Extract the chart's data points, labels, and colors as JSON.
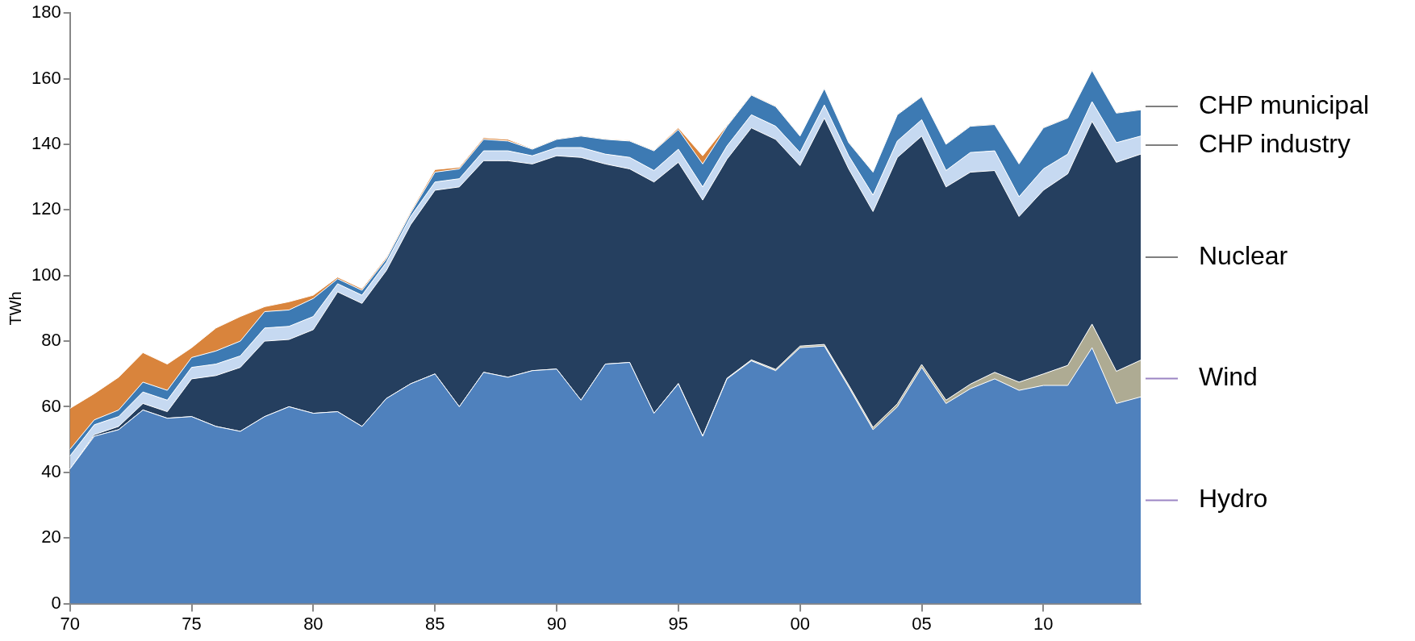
{
  "chart_data": {
    "type": "area",
    "stacked": true,
    "ylabel": "TWh",
    "ylim": [
      0,
      180
    ],
    "yticks": [
      0,
      20,
      40,
      60,
      80,
      100,
      120,
      140,
      160,
      180
    ],
    "grid": false,
    "legend": false,
    "categories": [
      "70",
      null,
      null,
      null,
      null,
      "75",
      null,
      null,
      null,
      null,
      "80",
      null,
      null,
      null,
      null,
      "85",
      null,
      null,
      null,
      null,
      "90",
      null,
      null,
      null,
      null,
      "95",
      null,
      null,
      null,
      null,
      "00",
      null,
      null,
      null,
      null,
      "05",
      null,
      null,
      null,
      null,
      "10",
      null,
      null,
      null,
      null
    ],
    "series": [
      {
        "name": "Hydro",
        "color": "#4f81bd",
        "values": [
          41,
          51,
          53,
          59,
          56.5,
          57,
          54,
          52.5,
          57,
          60,
          58,
          58.5,
          54,
          62.5,
          67,
          70,
          60,
          70.5,
          69,
          71,
          71.5,
          62,
          73,
          73.5,
          58,
          67,
          51,
          68.5,
          74,
          71,
          78,
          78.5,
          66,
          53,
          60,
          72,
          61,
          65.5,
          68.5,
          65,
          66.5,
          66.5,
          78,
          61,
          63
        ]
      },
      {
        "name": "Wind",
        "color": "#aeab93",
        "values": [
          0,
          0,
          0,
          0,
          0,
          0,
          0,
          0,
          0,
          0,
          0,
          0,
          0,
          0,
          0,
          0,
          0,
          0,
          0,
          0,
          0,
          0,
          0,
          0,
          0,
          0.1,
          0.1,
          0.2,
          0.3,
          0.4,
          0.5,
          0.5,
          0.6,
          0.7,
          0.9,
          0.9,
          1,
          1.4,
          2,
          2.5,
          3.5,
          6.1,
          7.2,
          9.8,
          11.2
        ]
      },
      {
        "name": "Nuclear",
        "color": "#253f5f",
        "values": [
          0,
          0.5,
          1,
          2,
          2,
          11.5,
          15.5,
          19.5,
          23,
          20.5,
          25.5,
          36.5,
          37.5,
          39,
          48.5,
          56,
          67,
          64.5,
          66,
          63,
          65,
          74,
          61,
          59,
          70.5,
          67.4,
          71.9,
          66.8,
          70.7,
          70.1,
          55,
          69,
          65.9,
          65.8,
          75.1,
          69.6,
          65,
          64.6,
          61.5,
          50.5,
          56,
          58.4,
          61.8,
          63.7,
          62.8
        ]
      },
      {
        "name": "CHP industry",
        "color": "#c6d9f1",
        "values": [
          4,
          3,
          3,
          3.5,
          3.5,
          3.5,
          3.5,
          3.5,
          4,
          4,
          4,
          2.5,
          2.5,
          2.5,
          2.5,
          2.5,
          2.5,
          3,
          3,
          2.5,
          2.5,
          3,
          3,
          3.5,
          3.5,
          4,
          4,
          4,
          4,
          4,
          4,
          4,
          4,
          5,
          5,
          5,
          5,
          6,
          6,
          6,
          6.5,
          6,
          6,
          6,
          5.5
        ]
      },
      {
        "name": "CHP municipal",
        "color": "#3d7ab3",
        "values": [
          2,
          1.5,
          2,
          3,
          3,
          3,
          4,
          4.5,
          5,
          5,
          5.5,
          1.5,
          1.5,
          1,
          1,
          3,
          3,
          3.5,
          3,
          2,
          2.5,
          3.5,
          4.5,
          5,
          6,
          6,
          7,
          6,
          6,
          6,
          5,
          5,
          4,
          7,
          8,
          7,
          8,
          8,
          8,
          10,
          12.5,
          11,
          9.5,
          9,
          8
        ]
      },
      {
        "color": "#d9843c",
        "values": [
          12.5,
          8,
          10,
          9,
          8,
          3,
          7,
          7.5,
          1.5,
          2.5,
          1,
          0.5,
          0.5,
          0.5,
          0.5,
          0.8,
          0.5,
          0.5,
          0.5,
          0.2,
          0.2,
          0.2,
          0.2,
          0.2,
          0.2,
          0.5,
          2.5,
          0.3,
          0.2,
          0.2,
          0.2,
          0.2,
          0.2,
          0.2,
          0.2,
          0.2,
          0.2,
          0.2,
          0.2,
          0.2,
          0.2,
          0.2,
          0.2,
          0.2,
          0.2
        ]
      }
    ]
  }
}
